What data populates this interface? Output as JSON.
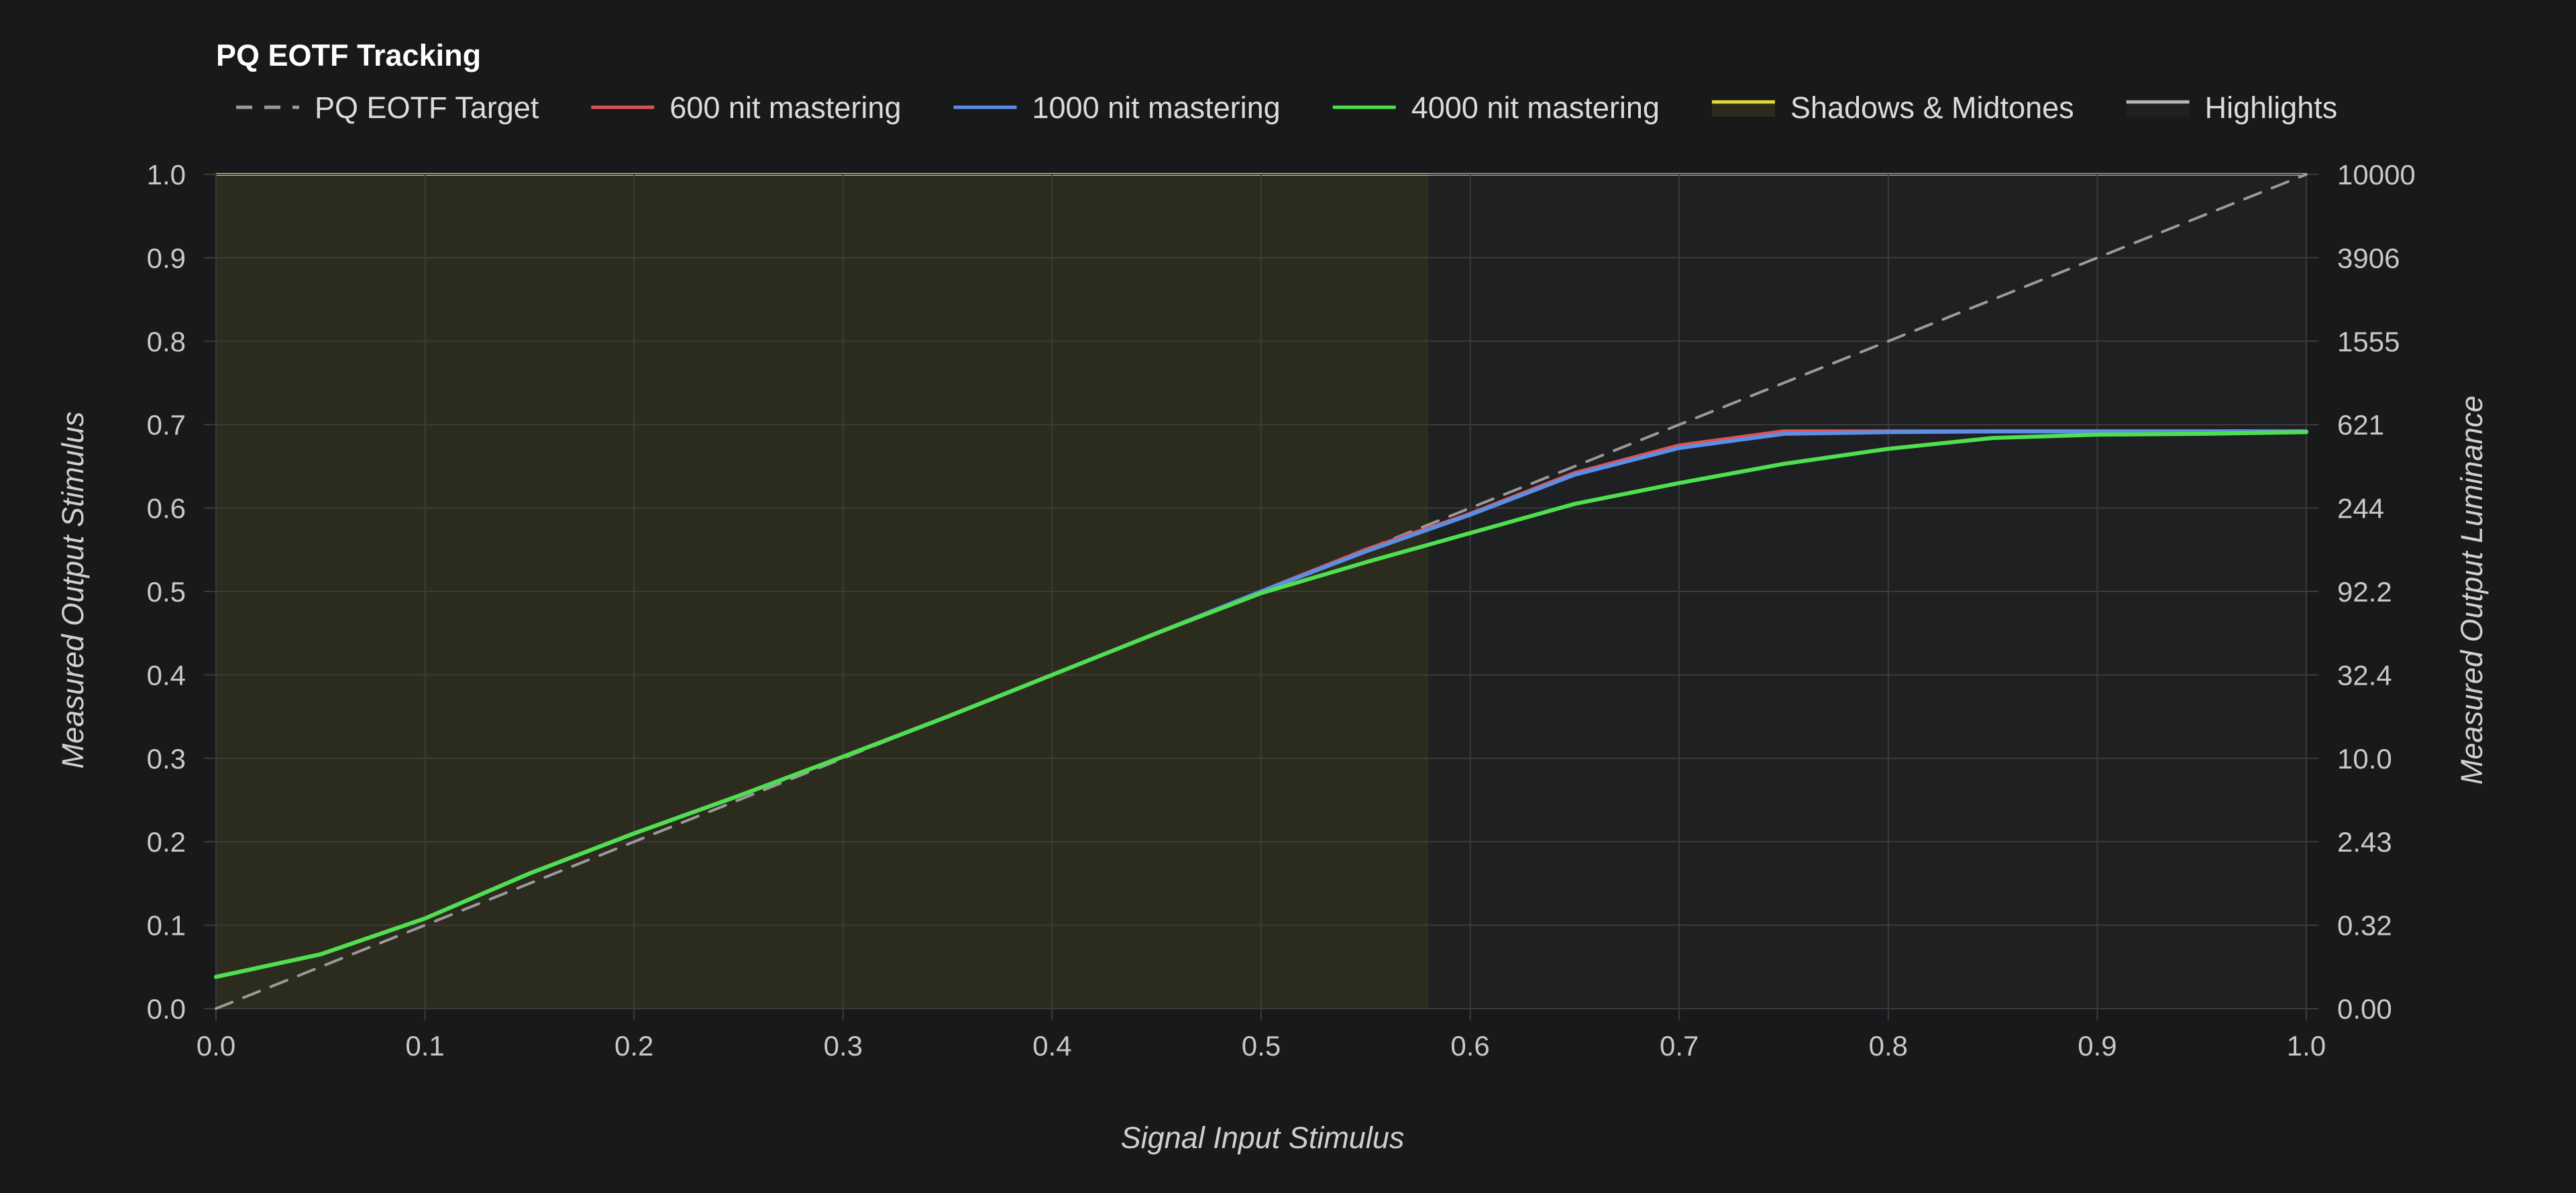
{
  "chart_data": {
    "type": "line",
    "title": "PQ EOTF Tracking",
    "xlabel": "Signal Input Stimulus",
    "ylabel": "Measured Output Stimulus",
    "y2label": "Measured Output Luminance",
    "xlim": [
      0,
      1
    ],
    "ylim": [
      0,
      1
    ],
    "x_ticks": [
      "0.0",
      "0.1",
      "0.2",
      "0.3",
      "0.4",
      "0.5",
      "0.6",
      "0.7",
      "0.8",
      "0.9",
      "1.0"
    ],
    "y_ticks": [
      "0.0",
      "0.1",
      "0.2",
      "0.3",
      "0.4",
      "0.5",
      "0.6",
      "0.7",
      "0.8",
      "0.9",
      "1.0"
    ],
    "y2_ticks": [
      "0.00",
      "0.32",
      "2.43",
      "10.0",
      "32.4",
      "92.2",
      "244",
      "621",
      "1555",
      "3906",
      "10000"
    ],
    "grid": true,
    "legend_position": "top",
    "regions": [
      {
        "name": "Shadows & Midtones",
        "x_start": 0.0,
        "x_end": 0.58,
        "color": "#e0dc3a",
        "fill": "rgba(224,220,58,0.10)"
      },
      {
        "name": "Highlights",
        "x_start": 0.58,
        "x_end": 1.0,
        "color": "#b9b6ae",
        "fill": "rgba(200,200,200,0.04)"
      }
    ],
    "series": [
      {
        "name": "PQ EOTF Target",
        "color": "#9a9a9a",
        "dashed": true,
        "x": [
          0,
          1
        ],
        "y": [
          0,
          1
        ]
      },
      {
        "name": "600 nit mastering",
        "color": "#e05252",
        "dashed": false,
        "x": [
          0,
          0.05,
          0.1,
          0.15,
          0.2,
          0.25,
          0.3,
          0.35,
          0.4,
          0.45,
          0.5,
          0.55,
          0.6,
          0.65,
          0.7,
          0.75,
          0.8,
          0.85,
          0.9,
          0.95,
          1.0
        ],
        "y": [
          0.038,
          0.065,
          0.108,
          0.162,
          0.21,
          0.255,
          0.302,
          0.35,
          0.4,
          0.45,
          0.5,
          0.55,
          0.593,
          0.642,
          0.675,
          0.692,
          0.692,
          0.692,
          0.692,
          0.692,
          0.692
        ]
      },
      {
        "name": "1000 nit mastering",
        "color": "#5b8ee6",
        "dashed": false,
        "x": [
          0,
          0.05,
          0.1,
          0.15,
          0.2,
          0.25,
          0.3,
          0.35,
          0.4,
          0.45,
          0.5,
          0.55,
          0.6,
          0.65,
          0.7,
          0.75,
          0.8,
          0.85,
          0.9,
          0.95,
          1.0
        ],
        "y": [
          0.038,
          0.065,
          0.108,
          0.162,
          0.21,
          0.255,
          0.302,
          0.35,
          0.4,
          0.45,
          0.5,
          0.548,
          0.592,
          0.64,
          0.672,
          0.689,
          0.691,
          0.692,
          0.692,
          0.692,
          0.692
        ]
      },
      {
        "name": "4000 nit mastering",
        "color": "#4ee04e",
        "dashed": false,
        "x": [
          0,
          0.05,
          0.1,
          0.15,
          0.2,
          0.25,
          0.3,
          0.35,
          0.4,
          0.45,
          0.5,
          0.55,
          0.6,
          0.65,
          0.7,
          0.75,
          0.8,
          0.85,
          0.9,
          0.95,
          1.0
        ],
        "y": [
          0.038,
          0.065,
          0.108,
          0.162,
          0.21,
          0.255,
          0.302,
          0.35,
          0.4,
          0.45,
          0.498,
          0.535,
          0.57,
          0.605,
          0.63,
          0.653,
          0.671,
          0.684,
          0.688,
          0.689,
          0.691
        ]
      }
    ],
    "colors": {
      "background": "#18191b",
      "grid": "#3a3b3d",
      "tick_text": "#c8c8c8"
    }
  }
}
